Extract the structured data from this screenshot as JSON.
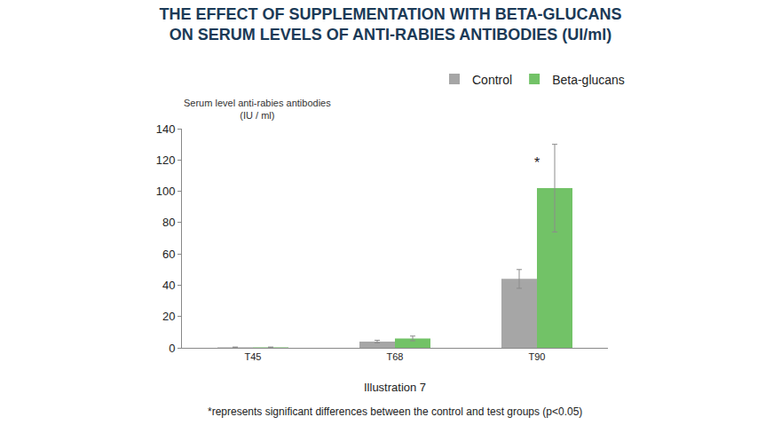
{
  "chart_data": {
    "type": "bar",
    "title": [
      "THE EFFECT OF SUPPLEMENTATION WITH BETA-GLUCANS",
      "ON SERUM LEVELS OF ANTI-RABIES ANTIBODIES (UI/ml)"
    ],
    "y_label": [
      "Serum level anti-rabies antibodies",
      "(IU / ml)"
    ],
    "categories": [
      "T45",
      "T68",
      "T90"
    ],
    "series": [
      {
        "name": "Control",
        "color": "#a6a6a6",
        "values": [
          0.3,
          4,
          44
        ],
        "error": [
          0.2,
          0.8,
          6
        ]
      },
      {
        "name": "Beta-glucans",
        "color": "#72c267",
        "values": [
          0.3,
          6,
          102
        ],
        "error": [
          0.2,
          1.5,
          28
        ]
      }
    ],
    "ylim": [
      0,
      140
    ],
    "yticks": [
      0,
      20,
      40,
      60,
      80,
      100,
      120,
      140
    ],
    "grid": false,
    "legend": "top right",
    "annotations": [
      {
        "text": "*",
        "category": "T90",
        "y": 118
      }
    ],
    "caption": "Illustration 7",
    "footnote": "*represents significant differences between the control and test groups (p<0.05)"
  }
}
